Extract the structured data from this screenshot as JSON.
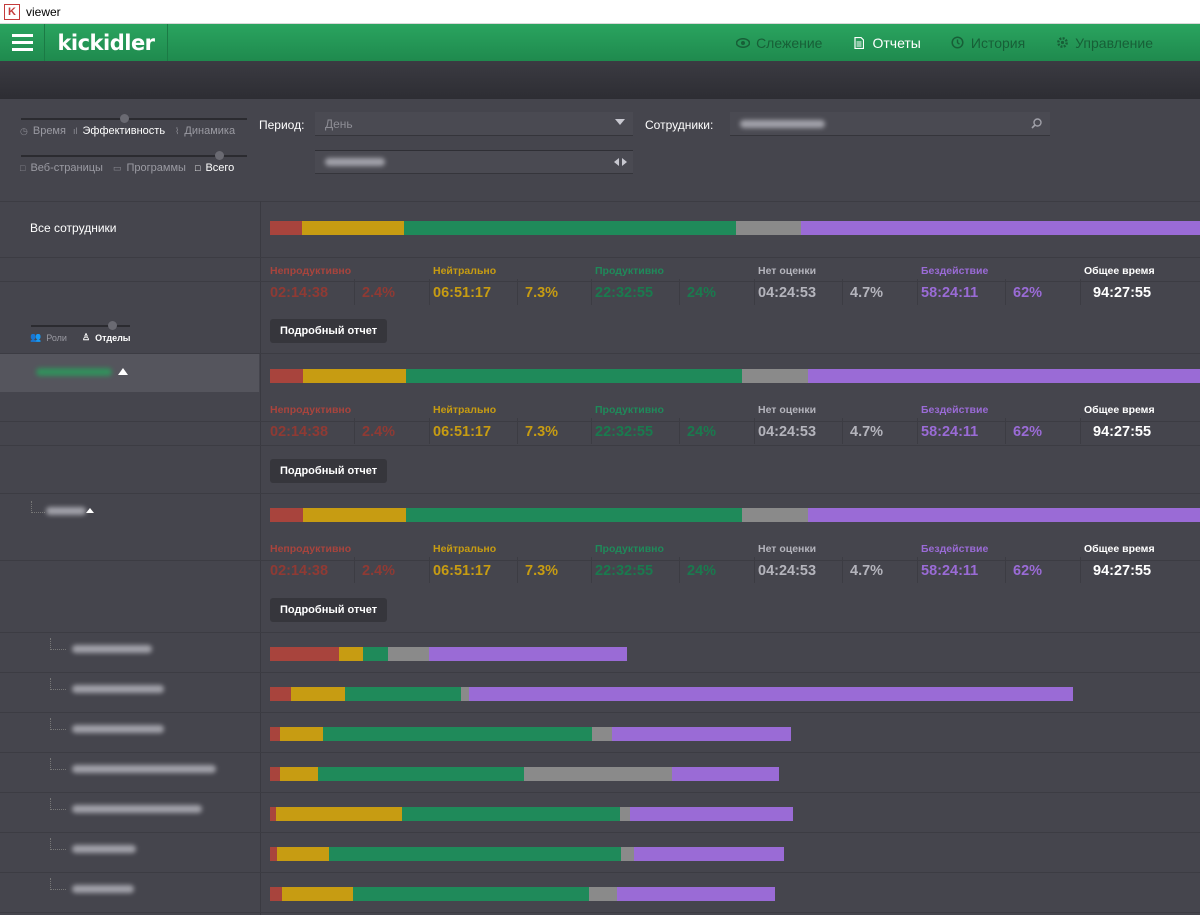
{
  "window": {
    "title": "viewer",
    "icon": "K"
  },
  "header": {
    "logo": "kickidler",
    "nav": [
      {
        "label": "Слежение",
        "icon": "eye-icon",
        "active": false
      },
      {
        "label": "Отчеты",
        "icon": "document-icon",
        "active": true
      },
      {
        "label": "История",
        "icon": "history-icon",
        "active": false
      },
      {
        "label": "Управление",
        "icon": "gear-icon",
        "active": false
      }
    ]
  },
  "filters": {
    "modes": [
      "Время",
      "Эффективность",
      "Динамика"
    ],
    "active_mode": "Эффективность",
    "types": [
      "Веб-страницы",
      "Программы",
      "Всего"
    ],
    "active_type": "Всего",
    "period_label": "Период:",
    "period_value": "День",
    "employees_label": "Сотрудники:",
    "grouping": [
      "Роли",
      "Отделы"
    ],
    "active_grouping": "Отделы"
  },
  "colors": {
    "unproductive": "#a8443d",
    "neutral": "#c79c12",
    "productive": "#1f8a5a",
    "unrated": "#8a8a8a",
    "idle": "#9a6bd6",
    "total": "#ffffff"
  },
  "stat_headers": {
    "unproductive": "Непродуктивно",
    "neutral": "Нейтрально",
    "productive": "Продуктивно",
    "unrated": "Нет оценки",
    "idle": "Бездействие",
    "total": "Общее время"
  },
  "detail_button": "Подробный отчет",
  "summary": {
    "label": "Все сотрудники",
    "stats": {
      "unproductive": {
        "time": "02:14:38",
        "pct": "2.4%"
      },
      "neutral": {
        "time": "06:51:17",
        "pct": "7.3%"
      },
      "productive": {
        "time": "22:32:55",
        "pct": "24%"
      },
      "unrated": {
        "time": "04:24:53",
        "pct": "4.7%"
      },
      "idle": {
        "time": "58:24:11",
        "pct": "62%"
      },
      "total": {
        "time": "94:27:55"
      }
    },
    "bar": [
      3.3,
      10.4,
      33.9,
      6.6,
      45.8
    ]
  },
  "groups": [
    {
      "stats": {
        "unproductive": {
          "time": "02:14:38",
          "pct": "2.4%"
        },
        "neutral": {
          "time": "06:51:17",
          "pct": "7.3%"
        },
        "productive": {
          "time": "22:32:55",
          "pct": "24%"
        },
        "unrated": {
          "time": "04:24:53",
          "pct": "4.7%"
        },
        "idle": {
          "time": "58:24:11",
          "pct": "62%"
        },
        "total": {
          "time": "94:27:55"
        }
      },
      "bar": [
        3.4,
        10.5,
        34.3,
        6.7,
        45.1
      ]
    },
    {
      "stats": {
        "unproductive": {
          "time": "02:14:38",
          "pct": "2.4%"
        },
        "neutral": {
          "time": "06:51:17",
          "pct": "7.3%"
        },
        "productive": {
          "time": "22:32:55",
          "pct": "24%"
        },
        "unrated": {
          "time": "04:24:53",
          "pct": "4.7%"
        },
        "idle": {
          "time": "58:24:11",
          "pct": "62%"
        },
        "total": {
          "time": "94:27:55"
        }
      },
      "bar": [
        3.4,
        10.5,
        34.3,
        6.7,
        45.1
      ]
    }
  ],
  "employees": [
    {
      "bar": [
        7.0,
        2.5,
        2.5,
        4.2,
        20.2
      ]
    },
    {
      "bar": [
        2.1,
        5.6,
        11.8,
        0.8,
        61.6
      ]
    },
    {
      "bar": [
        1.0,
        4.4,
        27.5,
        2.0,
        18.3
      ]
    },
    {
      "bar": [
        1.0,
        3.9,
        21.0,
        15.1,
        10.9
      ]
    },
    {
      "bar": [
        0.6,
        12.9,
        22.2,
        1.0,
        16.7
      ]
    },
    {
      "bar": [
        0.7,
        5.3,
        29.8,
        1.3,
        15.4
      ]
    },
    {
      "bar": [
        1.2,
        7.3,
        24.1,
        2.8,
        16.1
      ]
    }
  ]
}
